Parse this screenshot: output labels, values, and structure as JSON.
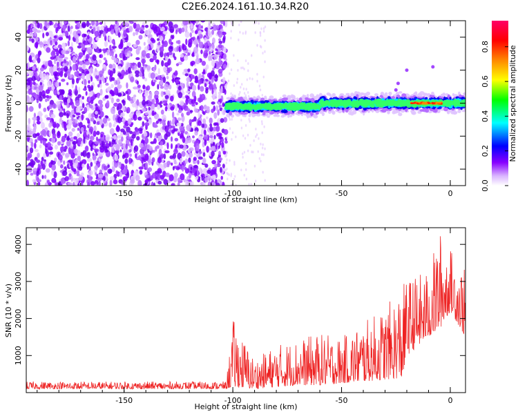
{
  "figure": {
    "title": "C2E6.2024.161.10.34.R20"
  },
  "chart_data": [
    {
      "type": "heatmap",
      "xlabel": "Height of straight line (km)",
      "ylabel": "Frequency (Hz)",
      "xlim": [
        -195,
        7
      ],
      "ylim": [
        -50,
        50
      ],
      "x_ticks": [
        -150,
        -100,
        -50,
        0
      ],
      "y_ticks": [
        -40,
        -20,
        0,
        20,
        40
      ],
      "colorbar": {
        "label": "Normalized spectral amplitude",
        "range": [
          0.0,
          0.95
        ],
        "ticks": [
          0.0,
          0.2,
          0.4,
          0.6,
          0.8
        ],
        "colors": [
          "#ffffff",
          "#d9b3ff",
          "#8800ff",
          "#0000ff",
          "#00ffff",
          "#00ff00",
          "#ffff00",
          "#ff8800",
          "#ff0000",
          "#ff0066"
        ]
      },
      "regions": [
        {
          "x_range": [
            -195,
            -103
          ],
          "y_range": [
            -50,
            50
          ],
          "pattern": "broadband noise",
          "amplitude_range": [
            0.0,
            0.2
          ]
        },
        {
          "x_range": [
            -103,
            7
          ],
          "y_center": 0,
          "pattern": "narrow signal band near 0 Hz",
          "amplitude_range": [
            0.2,
            0.9
          ]
        }
      ]
    },
    {
      "type": "line",
      "xlabel": "Height of straight line (km)",
      "ylabel": "SNR (10 * v/v)",
      "xlim": [
        -195,
        7
      ],
      "ylim": [
        0,
        4450
      ],
      "x_ticks": [
        -150,
        -100,
        -50,
        0
      ],
      "y_ticks": [
        1000,
        2000,
        3000,
        4000
      ],
      "color": "#ee2222",
      "series_envelope": [
        {
          "x": -195,
          "low": 100,
          "high": 300
        },
        {
          "x": -103,
          "low": 100,
          "high": 300
        },
        {
          "x": -100,
          "low": 150,
          "high": 2000
        },
        {
          "x": -90,
          "low": 100,
          "high": 900
        },
        {
          "x": -80,
          "low": 150,
          "high": 1300
        },
        {
          "x": -70,
          "low": 200,
          "high": 1450
        },
        {
          "x": -60,
          "low": 200,
          "high": 1600
        },
        {
          "x": -50,
          "low": 250,
          "high": 1500
        },
        {
          "x": -40,
          "low": 300,
          "high": 1900
        },
        {
          "x": -30,
          "low": 350,
          "high": 2300
        },
        {
          "x": -22,
          "low": 400,
          "high": 2900
        },
        {
          "x": -20,
          "low": 1000,
          "high": 3100
        },
        {
          "x": -10,
          "low": 1500,
          "high": 3300
        },
        {
          "x": -5,
          "low": 1700,
          "high": 4400
        },
        {
          "x": 0,
          "low": 2200,
          "high": 3900
        },
        {
          "x": 7,
          "low": 1500,
          "high": 3300
        }
      ]
    }
  ]
}
